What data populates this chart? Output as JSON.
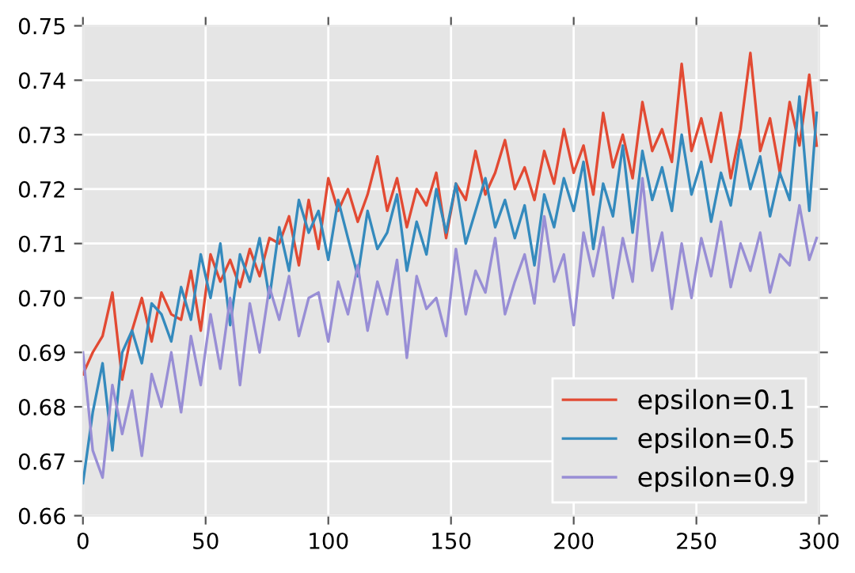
{
  "chart_data": {
    "type": "line",
    "x": [
      0,
      4,
      8,
      12,
      16,
      20,
      24,
      28,
      32,
      36,
      40,
      44,
      48,
      52,
      56,
      60,
      64,
      68,
      72,
      76,
      80,
      84,
      88,
      92,
      96,
      100,
      104,
      108,
      112,
      116,
      120,
      124,
      128,
      132,
      136,
      140,
      144,
      148,
      152,
      156,
      160,
      164,
      168,
      172,
      176,
      180,
      184,
      188,
      192,
      196,
      200,
      204,
      208,
      212,
      216,
      220,
      224,
      228,
      232,
      236,
      240,
      244,
      248,
      252,
      256,
      260,
      264,
      268,
      272,
      276,
      280,
      284,
      288,
      292,
      296,
      299
    ],
    "series": [
      {
        "name": "epsilon=0.1",
        "color": "#e24a33",
        "values": [
          0.686,
          0.69,
          0.693,
          0.701,
          0.685,
          0.694,
          0.7,
          0.692,
          0.701,
          0.697,
          0.696,
          0.705,
          0.694,
          0.708,
          0.703,
          0.707,
          0.702,
          0.709,
          0.704,
          0.711,
          0.71,
          0.715,
          0.706,
          0.718,
          0.709,
          0.722,
          0.716,
          0.72,
          0.714,
          0.719,
          0.726,
          0.716,
          0.722,
          0.713,
          0.72,
          0.717,
          0.723,
          0.711,
          0.721,
          0.718,
          0.727,
          0.719,
          0.723,
          0.729,
          0.72,
          0.724,
          0.718,
          0.727,
          0.721,
          0.731,
          0.723,
          0.728,
          0.719,
          0.734,
          0.724,
          0.73,
          0.722,
          0.736,
          0.727,
          0.731,
          0.725,
          0.743,
          0.727,
          0.733,
          0.725,
          0.734,
          0.722,
          0.731,
          0.745,
          0.727,
          0.733,
          0.723,
          0.736,
          0.728,
          0.741,
          0.728
        ]
      },
      {
        "name": "epsilon=0.5",
        "color": "#348abd",
        "values": [
          0.666,
          0.679,
          0.688,
          0.672,
          0.69,
          0.694,
          0.688,
          0.699,
          0.697,
          0.692,
          0.702,
          0.696,
          0.708,
          0.7,
          0.71,
          0.695,
          0.708,
          0.703,
          0.711,
          0.7,
          0.713,
          0.705,
          0.718,
          0.712,
          0.716,
          0.707,
          0.718,
          0.711,
          0.704,
          0.716,
          0.709,
          0.712,
          0.719,
          0.705,
          0.714,
          0.708,
          0.72,
          0.712,
          0.721,
          0.71,
          0.716,
          0.722,
          0.713,
          0.718,
          0.711,
          0.717,
          0.706,
          0.719,
          0.713,
          0.722,
          0.716,
          0.725,
          0.709,
          0.721,
          0.715,
          0.728,
          0.712,
          0.727,
          0.718,
          0.724,
          0.716,
          0.73,
          0.719,
          0.725,
          0.714,
          0.723,
          0.717,
          0.729,
          0.72,
          0.726,
          0.715,
          0.723,
          0.718,
          0.737,
          0.716,
          0.734
        ]
      },
      {
        "name": "epsilon=0.9",
        "color": "#988ed5",
        "values": [
          0.69,
          0.672,
          0.667,
          0.684,
          0.675,
          0.683,
          0.671,
          0.686,
          0.68,
          0.69,
          0.679,
          0.693,
          0.684,
          0.697,
          0.687,
          0.7,
          0.684,
          0.699,
          0.69,
          0.702,
          0.696,
          0.704,
          0.693,
          0.7,
          0.701,
          0.692,
          0.703,
          0.697,
          0.706,
          0.694,
          0.703,
          0.697,
          0.707,
          0.689,
          0.704,
          0.698,
          0.7,
          0.693,
          0.709,
          0.697,
          0.705,
          0.701,
          0.711,
          0.697,
          0.703,
          0.708,
          0.699,
          0.715,
          0.703,
          0.708,
          0.695,
          0.712,
          0.704,
          0.713,
          0.7,
          0.711,
          0.703,
          0.722,
          0.705,
          0.712,
          0.698,
          0.71,
          0.7,
          0.711,
          0.704,
          0.714,
          0.702,
          0.71,
          0.705,
          0.712,
          0.701,
          0.708,
          0.706,
          0.717,
          0.707,
          0.711
        ]
      }
    ],
    "xlim": [
      0,
      300
    ],
    "ylim": [
      0.66,
      0.75
    ],
    "xticks": [
      0,
      50,
      100,
      150,
      200,
      250,
      300
    ],
    "yticks": [
      {
        "value": 0.66,
        "label": "0.66"
      },
      {
        "value": 0.67,
        "label": "0.67"
      },
      {
        "value": 0.68,
        "label": "0.68"
      },
      {
        "value": 0.69,
        "label": "0.69"
      },
      {
        "value": 0.7,
        "label": "0.70"
      },
      {
        "value": 0.71,
        "label": "0.71"
      },
      {
        "value": 0.72,
        "label": "0.72"
      },
      {
        "value": 0.73,
        "label": "0.73"
      },
      {
        "value": 0.74,
        "label": "0.74"
      },
      {
        "value": 0.75,
        "label": "0.75"
      }
    ],
    "grid": true,
    "legend": "lower right"
  }
}
